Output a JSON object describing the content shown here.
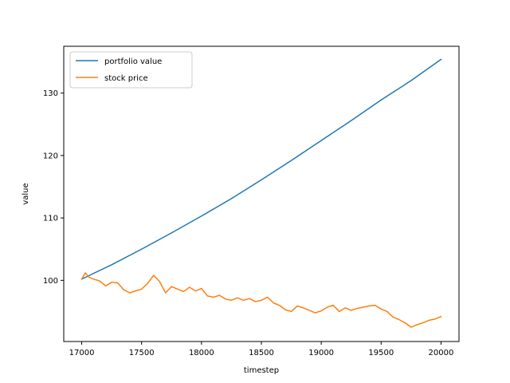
{
  "chart_data": {
    "type": "line",
    "xlabel": "timestep",
    "ylabel": "value",
    "xlim": [
      16850,
      20150
    ],
    "ylim": [
      90.2,
      137.5
    ],
    "xticks": [
      17000,
      17500,
      18000,
      18500,
      19000,
      19500,
      20000
    ],
    "yticks": [
      100,
      110,
      120,
      130
    ],
    "grid": false,
    "legend_position": "top-left",
    "series": [
      {
        "name": "portfolio value",
        "color": "#1f77b4",
        "points": [
          [
            17000,
            100.2
          ],
          [
            17250,
            102.5
          ],
          [
            17500,
            105.0
          ],
          [
            17750,
            107.6
          ],
          [
            18000,
            110.3
          ],
          [
            18250,
            113.1
          ],
          [
            18500,
            116.1
          ],
          [
            18750,
            119.2
          ],
          [
            19000,
            122.4
          ],
          [
            19250,
            125.6
          ],
          [
            19500,
            128.9
          ],
          [
            19750,
            132.0
          ],
          [
            20000,
            135.4
          ]
        ]
      },
      {
        "name": "stock price",
        "color": "#ff7f0e",
        "points": [
          [
            17000,
            100.2
          ],
          [
            17030,
            101.2
          ],
          [
            17060,
            100.5
          ],
          [
            17100,
            100.2
          ],
          [
            17150,
            99.9
          ],
          [
            17200,
            99.1
          ],
          [
            17250,
            99.7
          ],
          [
            17300,
            99.6
          ],
          [
            17350,
            98.5
          ],
          [
            17400,
            98.0
          ],
          [
            17450,
            98.3
          ],
          [
            17500,
            98.6
          ],
          [
            17550,
            99.5
          ],
          [
            17600,
            100.8
          ],
          [
            17650,
            99.8
          ],
          [
            17700,
            98.0
          ],
          [
            17750,
            99.0
          ],
          [
            17800,
            98.6
          ],
          [
            17850,
            98.2
          ],
          [
            17900,
            98.9
          ],
          [
            17950,
            98.3
          ],
          [
            18000,
            98.7
          ],
          [
            18050,
            97.5
          ],
          [
            18100,
            97.3
          ],
          [
            18150,
            97.6
          ],
          [
            18200,
            97.0
          ],
          [
            18250,
            96.8
          ],
          [
            18300,
            97.2
          ],
          [
            18350,
            96.8
          ],
          [
            18400,
            97.1
          ],
          [
            18450,
            96.6
          ],
          [
            18500,
            96.8
          ],
          [
            18550,
            97.3
          ],
          [
            18600,
            96.4
          ],
          [
            18650,
            96.0
          ],
          [
            18700,
            95.3
          ],
          [
            18750,
            95.0
          ],
          [
            18800,
            95.9
          ],
          [
            18850,
            95.6
          ],
          [
            18900,
            95.2
          ],
          [
            18950,
            94.8
          ],
          [
            19000,
            95.1
          ],
          [
            19050,
            95.7
          ],
          [
            19100,
            96.0
          ],
          [
            19150,
            95.0
          ],
          [
            19200,
            95.6
          ],
          [
            19250,
            95.2
          ],
          [
            19300,
            95.5
          ],
          [
            19350,
            95.7
          ],
          [
            19400,
            95.9
          ],
          [
            19450,
            96.0
          ],
          [
            19500,
            95.4
          ],
          [
            19550,
            95.0
          ],
          [
            19600,
            94.1
          ],
          [
            19650,
            93.7
          ],
          [
            19700,
            93.2
          ],
          [
            19750,
            92.5
          ],
          [
            19800,
            92.9
          ],
          [
            19850,
            93.2
          ],
          [
            19900,
            93.6
          ],
          [
            19950,
            93.8
          ],
          [
            20000,
            94.2
          ]
        ]
      }
    ]
  }
}
